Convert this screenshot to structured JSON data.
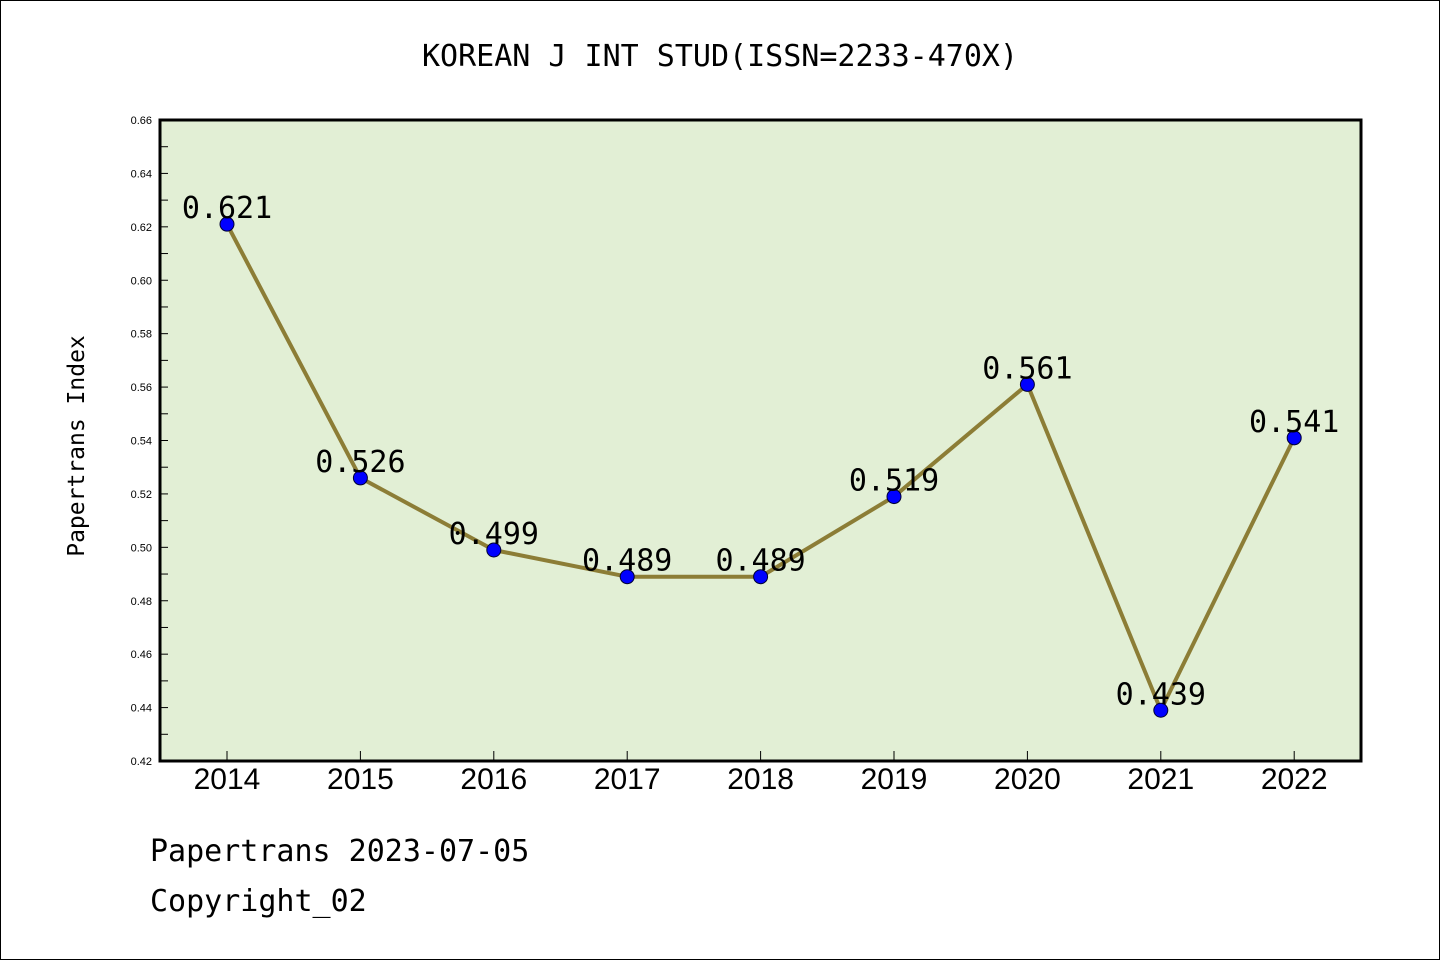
{
  "chart_data": {
    "type": "line",
    "title": "KOREAN J INT STUD(ISSN=2233-470X)",
    "xlabel": "",
    "ylabel": "Papertrans Index",
    "categories": [
      "2014",
      "2015",
      "2016",
      "2017",
      "2018",
      "2019",
      "2020",
      "2021",
      "2022"
    ],
    "series": [
      {
        "values": [
          0.621,
          0.526,
          0.499,
          0.489,
          0.489,
          0.519,
          0.561,
          0.439,
          0.541
        ],
        "labels": [
          "0.621",
          "0.526",
          "0.499",
          "0.489",
          "0.489",
          "0.519",
          "0.561",
          "0.439",
          "0.541"
        ]
      }
    ],
    "ylim": [
      0.42,
      0.66
    ],
    "yticks": [
      "0.42",
      "0.44",
      "0.46",
      "0.48",
      "0.50",
      "0.52",
      "0.54",
      "0.56",
      "0.58",
      "0.60",
      "0.62",
      "0.64",
      "0.66"
    ],
    "grid": false,
    "colors": {
      "plot_background": "#e2efd5",
      "line": "#8c7d36",
      "marker": "#0000ff"
    }
  },
  "footer": {
    "date_line": "Papertrans 2023-07-05",
    "copyright_line": "Copyright_02"
  }
}
